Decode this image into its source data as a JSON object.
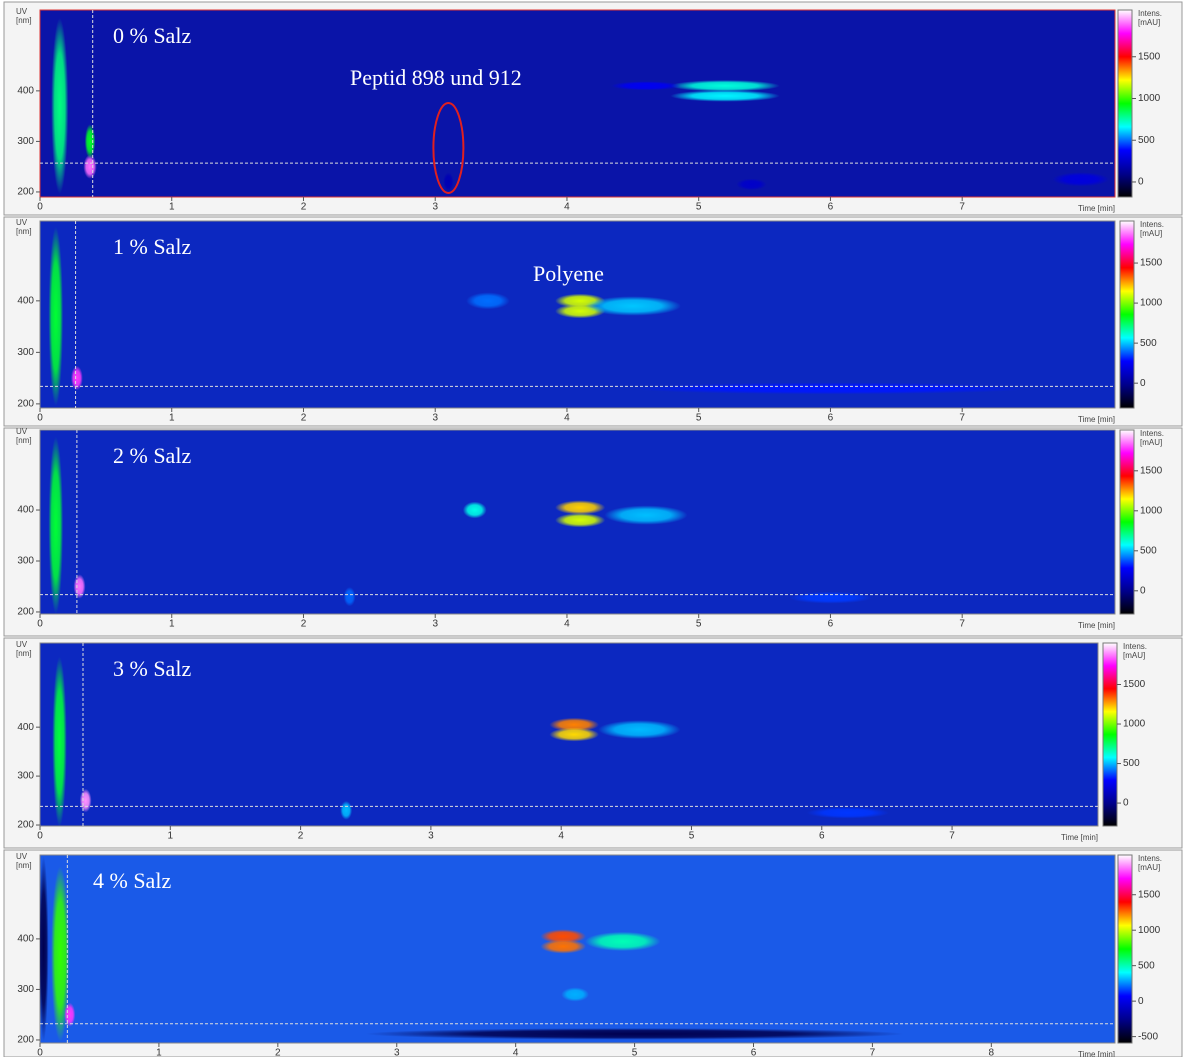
{
  "chart_data": [
    {
      "type": "heatmap",
      "label": "0 % Salz",
      "annotations": [
        "Peptid 898 und 912"
      ],
      "background": "#0a14a8",
      "xlabel": "Time [min]",
      "ylabel": [
        "UV",
        "[nm]"
      ],
      "clabel": [
        "Intens.",
        "[mAU]"
      ],
      "xlim": [
        0,
        8.16
      ],
      "ylim": [
        190,
        560
      ],
      "clim": [
        -180,
        2060
      ],
      "xticks": [
        0,
        1,
        2,
        3,
        4,
        5,
        6,
        7
      ],
      "yticks": [
        200,
        300,
        400
      ],
      "cticks": [
        0,
        500,
        1000,
        1500
      ],
      "cursor": {
        "x": 0.4,
        "y": 257
      },
      "spots": [
        {
          "x": 0.15,
          "y": 370,
          "value": 800,
          "w": 0.1,
          "h": 340
        },
        {
          "x": 0.38,
          "y": 250,
          "value": 1900,
          "w": 0.07,
          "h": 40
        },
        {
          "x": 0.38,
          "y": 300,
          "value": 900,
          "w": 0.05,
          "h": 60
        },
        {
          "x": 5.2,
          "y": 410,
          "value": 700,
          "w": 0.8,
          "h": 15
        },
        {
          "x": 5.2,
          "y": 390,
          "value": 650,
          "w": 0.8,
          "h": 15
        },
        {
          "x": 4.6,
          "y": 410,
          "value": 350,
          "w": 0.5,
          "h": 10
        },
        {
          "x": 7.9,
          "y": 225,
          "value": 300,
          "w": 0.4,
          "h": 20
        },
        {
          "x": 5.4,
          "y": 215,
          "value": 250,
          "w": 0.2,
          "h": 15
        },
        {
          "x": 3.1,
          "y": 220,
          "value": 200,
          "w": 0.05,
          "h": 30
        }
      ]
    },
    {
      "type": "heatmap",
      "label": "1 % Salz",
      "annotations": [
        "Polyene"
      ],
      "background": "#0c28c0",
      "xlabel": "Time [min]",
      "ylabel": [
        "UV",
        "[nm]"
      ],
      "clabel": [
        "Intens.",
        "[mAU]"
      ],
      "xlim": [
        0,
        8.16
      ],
      "ylim": [
        192,
        555
      ],
      "clim": [
        -310,
        2025
      ],
      "xticks": [
        0,
        1,
        2,
        3,
        4,
        5,
        6,
        7
      ],
      "yticks": [
        200,
        300,
        400
      ],
      "cticks": [
        0,
        500,
        1000,
        1500
      ],
      "cursor": {
        "x": 0.27,
        "y": 234
      },
      "spots": [
        {
          "x": 0.12,
          "y": 370,
          "value": 800,
          "w": 0.08,
          "h": 340
        },
        {
          "x": 0.28,
          "y": 250,
          "value": 1800,
          "w": 0.06,
          "h": 40
        },
        {
          "x": 4.1,
          "y": 400,
          "value": 1100,
          "w": 0.35,
          "h": 20
        },
        {
          "x": 4.1,
          "y": 380,
          "value": 1100,
          "w": 0.35,
          "h": 20
        },
        {
          "x": 4.5,
          "y": 390,
          "value": 500,
          "w": 0.7,
          "h": 30
        },
        {
          "x": 3.4,
          "y": 400,
          "value": 400,
          "w": 0.3,
          "h": 25
        },
        {
          "x": 6,
          "y": 230,
          "value": 300,
          "w": 3,
          "h": 15
        }
      ]
    },
    {
      "type": "heatmap",
      "label": "2 % Salz",
      "annotations": [],
      "background": "#0c28c0",
      "xlabel": "Time [min]",
      "ylabel": [
        "UV",
        "[nm]"
      ],
      "clabel": [
        "Intens.",
        "[mAU]"
      ],
      "xlim": [
        0,
        8.16
      ],
      "ylim": [
        196,
        557
      ],
      "clim": [
        -290,
        2010
      ],
      "xticks": [
        0,
        1,
        2,
        3,
        4,
        5,
        6,
        7
      ],
      "yticks": [
        200,
        300,
        400
      ],
      "cticks": [
        0,
        500,
        1000,
        1500
      ],
      "cursor": {
        "x": 0.28,
        "y": 234
      },
      "spots": [
        {
          "x": 0.12,
          "y": 370,
          "value": 800,
          "w": 0.08,
          "h": 340
        },
        {
          "x": 0.3,
          "y": 250,
          "value": 1850,
          "w": 0.06,
          "h": 40
        },
        {
          "x": 4.1,
          "y": 405,
          "value": 1200,
          "w": 0.35,
          "h": 20
        },
        {
          "x": 4.1,
          "y": 380,
          "value": 1100,
          "w": 0.35,
          "h": 20
        },
        {
          "x": 3.3,
          "y": 400,
          "value": 600,
          "w": 0.15,
          "h": 25
        },
        {
          "x": 4.6,
          "y": 390,
          "value": 500,
          "w": 0.6,
          "h": 30
        },
        {
          "x": 2.35,
          "y": 230,
          "value": 400,
          "w": 0.06,
          "h": 30
        },
        {
          "x": 6,
          "y": 228,
          "value": 350,
          "w": 0.6,
          "h": 15
        }
      ]
    },
    {
      "type": "heatmap",
      "label": "3 % Salz",
      "annotations": [],
      "background": "#0c28c0",
      "xlabel": "Time [min]",
      "ylabel": [
        "UV",
        "[nm]"
      ],
      "clabel": [
        "Intens.",
        "[mAU]"
      ],
      "xlim": [
        0,
        8.12
      ],
      "ylim": [
        198,
        572
      ],
      "clim": [
        -290,
        2025
      ],
      "xticks": [
        0,
        1,
        2,
        3,
        4,
        5,
        6,
        7
      ],
      "yticks": [
        200,
        300,
        400
      ],
      "cticks": [
        0,
        500,
        1000,
        1500
      ],
      "cursor": {
        "x": 0.33,
        "y": 238
      },
      "spots": [
        {
          "x": 0.15,
          "y": 370,
          "value": 800,
          "w": 0.08,
          "h": 340
        },
        {
          "x": 0.35,
          "y": 250,
          "value": 1900,
          "w": 0.06,
          "h": 40
        },
        {
          "x": 4.1,
          "y": 405,
          "value": 1300,
          "w": 0.35,
          "h": 20
        },
        {
          "x": 4.1,
          "y": 385,
          "value": 1200,
          "w": 0.35,
          "h": 20
        },
        {
          "x": 4.6,
          "y": 395,
          "value": 500,
          "w": 0.6,
          "h": 30
        },
        {
          "x": 2.35,
          "y": 230,
          "value": 500,
          "w": 0.06,
          "h": 30
        },
        {
          "x": 6.2,
          "y": 225,
          "value": 350,
          "w": 0.6,
          "h": 15
        }
      ]
    },
    {
      "type": "heatmap",
      "label": "4 % Salz",
      "annotations": [],
      "background": "#1a5ae8",
      "xlabel": "Time [min]",
      "ylabel": [
        "UV",
        "[nm]"
      ],
      "clabel": [
        "Intens.",
        "[mAU]"
      ],
      "xlim": [
        0,
        9.04
      ],
      "ylim": [
        194,
        566
      ],
      "clim": [
        -590,
        2060
      ],
      "xticks": [
        0,
        1,
        2,
        3,
        4,
        5,
        6,
        7,
        8
      ],
      "yticks": [
        200,
        300,
        400
      ],
      "cticks": [
        -500,
        0,
        500,
        1000,
        1500
      ],
      "cursor": {
        "x": 0.23,
        "y": 232
      },
      "spots": [
        {
          "x": 0.03,
          "y": 380,
          "value": -400,
          "w": 0.05,
          "h": 360
        },
        {
          "x": 0.17,
          "y": 370,
          "value": 800,
          "w": 0.12,
          "h": 340
        },
        {
          "x": 0.25,
          "y": 250,
          "value": 1800,
          "w": 0.06,
          "h": 40
        },
        {
          "x": 4.4,
          "y": 405,
          "value": 1300,
          "w": 0.35,
          "h": 20
        },
        {
          "x": 4.4,
          "y": 385,
          "value": 1250,
          "w": 0.35,
          "h": 20
        },
        {
          "x": 4.9,
          "y": 395,
          "value": 500,
          "w": 0.6,
          "h": 30
        },
        {
          "x": 5,
          "y": 212,
          "value": -400,
          "w": 4.5,
          "h": 15
        },
        {
          "x": 4.5,
          "y": 290,
          "value": 300,
          "w": 0.2,
          "h": 20
        }
      ]
    }
  ],
  "colorscale": [
    "#000000",
    "#00008c",
    "#0000ff",
    "#00ffff",
    "#00ff00",
    "#ffff00",
    "#ff0000",
    "#ff00ff",
    "#ffffff"
  ]
}
